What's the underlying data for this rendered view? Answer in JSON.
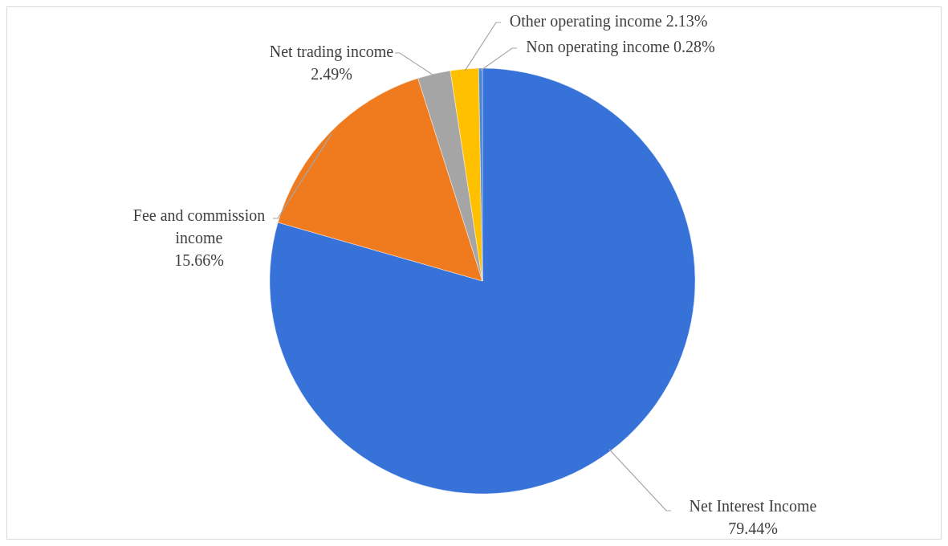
{
  "chart_data": {
    "type": "pie",
    "categories": [
      "Net Interest Income",
      "Fee and commission income",
      "Net trading income",
      "Other operating income",
      "Non operating income"
    ],
    "values": [
      79.44,
      15.66,
      2.49,
      2.13,
      0.28
    ],
    "colors": [
      "#3672d8",
      "#ef7b1e",
      "#a5a5a5",
      "#ffc000",
      "#4a86d4"
    ],
    "value_labels": [
      "79.44%",
      "15.66%",
      "2.49%",
      "2.13%",
      "0.28%"
    ],
    "legend": false
  }
}
